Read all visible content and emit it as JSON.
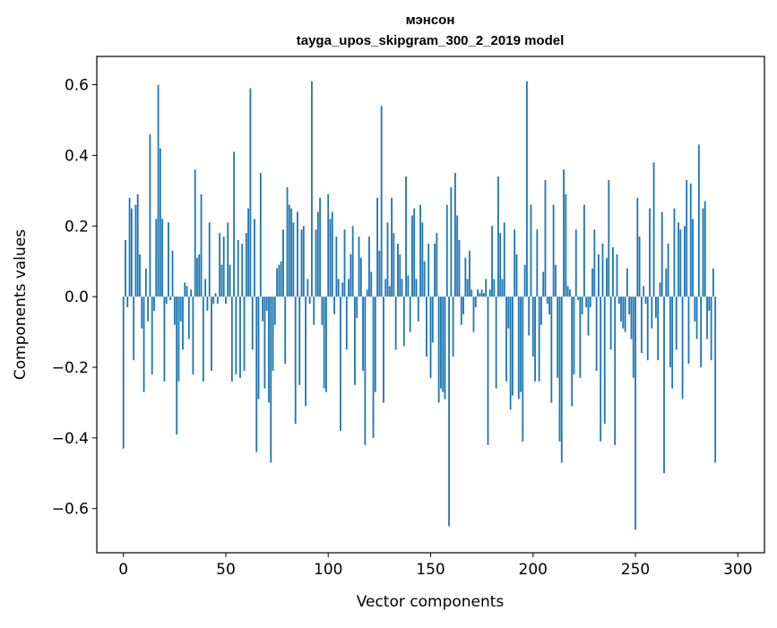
{
  "chart_data": {
    "type": "bar",
    "title": "мэнсон",
    "subtitle": "tayga_upos_skipgram_300_2_2019 model",
    "xlabel": "Vector components",
    "ylabel": "Components values",
    "xlim": [
      -13,
      313
    ],
    "ylim": [
      -0.725,
      0.68
    ],
    "xticks": [
      0,
      50,
      100,
      150,
      200,
      250,
      300
    ],
    "yticks": [
      -0.6,
      -0.4,
      -0.2,
      0.0,
      0.2,
      0.4,
      0.6
    ],
    "xtick_labels": [
      "0",
      "50",
      "100",
      "150",
      "200",
      "250",
      "300"
    ],
    "ytick_labels": [
      "−0.6",
      "−0.4",
      "−0.2",
      "0.0",
      "0.2",
      "0.4",
      "0.6"
    ],
    "bar_color": "#1f77b4",
    "values": [
      -0.43,
      0.16,
      -0.03,
      0.28,
      0.25,
      -0.18,
      0.26,
      0.29,
      0.12,
      -0.09,
      -0.27,
      0.08,
      -0.07,
      0.46,
      -0.22,
      -0.04,
      0.22,
      0.6,
      0.42,
      0.22,
      -0.24,
      -0.02,
      0.21,
      -0.01,
      0.13,
      -0.08,
      -0.39,
      -0.24,
      -0.07,
      -0.15,
      0.04,
      0.03,
      -0.12,
      0.02,
      -0.22,
      0.36,
      0.11,
      0.12,
      0.29,
      -0.24,
      0.05,
      -0.04,
      0.21,
      -0.21,
      -0.02,
      0.01,
      -0.02,
      0.18,
      0.09,
      0.17,
      -0.02,
      0.21,
      0.09,
      -0.24,
      0.41,
      -0.22,
      0.16,
      -0.23,
      0.15,
      -0.21,
      0.18,
      0.25,
      0.59,
      -0.15,
      0.22,
      -0.44,
      -0.29,
      0.35,
      -0.07,
      -0.26,
      -0.04,
      -0.3,
      -0.47,
      -0.21,
      -0.08,
      0.08,
      0.09,
      0.1,
      0.19,
      -0.19,
      0.31,
      0.26,
      0.25,
      0.21,
      -0.36,
      0.24,
      -0.25,
      0.19,
      0.2,
      -0.31,
      0.05,
      -0.02,
      0.61,
      -0.08,
      0.19,
      0.24,
      0.28,
      -0.08,
      -0.26,
      -0.27,
      0.29,
      0.22,
      0.24,
      -0.05,
      0.17,
      0.05,
      -0.38,
      0.04,
      0.19,
      -0.15,
      0.05,
      0.12,
      0.2,
      -0.25,
      -0.06,
      0.17,
      0.11,
      -0.21,
      -0.42,
      0.02,
      0.17,
      0.07,
      -0.4,
      -0.27,
      0.28,
      0.13,
      0.54,
      -0.3,
      0.05,
      0.21,
      0.03,
      0.28,
      0.18,
      -0.15,
      0.15,
      0.12,
      0.05,
      -0.14,
      0.34,
      0.06,
      -0.1,
      0.23,
      0.25,
      0.05,
      -0.07,
      0.26,
      0.21,
      0.1,
      -0.17,
      0.15,
      -0.23,
      -0.13,
      0.15,
      0.18,
      -0.3,
      -0.26,
      -0.27,
      -0.29,
      0.26,
      -0.65,
      0.31,
      -0.17,
      0.35,
      0.23,
      0.16,
      -0.08,
      -0.05,
      0.11,
      0.05,
      0.13,
      0.02,
      -0.1,
      -0.03,
      0.02,
      0.01,
      0.02,
      0.01,
      0.05,
      -0.42,
      0.02,
      0.2,
      0.05,
      -0.26,
      0.34,
      0.18,
      0.05,
      0.21,
      -0.24,
      -0.09,
      -0.32,
      -0.28,
      0.19,
      0.12,
      -0.29,
      -0.27,
      -0.41,
      0.09,
      0.61,
      -0.11,
      0.26,
      -0.17,
      -0.24,
      0.19,
      -0.24,
      -0.08,
      0.07,
      0.33,
      -0.02,
      -0.05,
      -0.3,
      0.26,
      0.09,
      -0.23,
      -0.41,
      -0.47,
      0.36,
      0.29,
      0.03,
      0.02,
      -0.31,
      -0.22,
      0.19,
      -0.01,
      -0.23,
      -0.05,
      0.26,
      -0.03,
      -0.11,
      -0.03,
      0.08,
      0.19,
      -0.21,
      0.12,
      -0.41,
      0.15,
      -0.36,
      0.11,
      0.33,
      -0.15,
      0.14,
      -0.42,
      0.12,
      -0.02,
      -0.07,
      -0.09,
      -0.1,
      0.08,
      -0.05,
      -0.12,
      -0.23,
      -0.66,
      0.28,
      0.17,
      -0.16,
      0.03,
      -0.02,
      -0.18,
      0.25,
      -0.09,
      0.38,
      -0.06,
      -0.18,
      0.04,
      0.24,
      -0.5,
      0.08,
      0.15,
      -0.2,
      -0.26,
      0.25,
      -0.15,
      0.21,
      0.19,
      -0.29,
      0.2,
      0.33,
      -0.19,
      0.32,
      0.22,
      -0.07,
      -0.12,
      0.43,
      -0.2,
      0.25,
      0.27,
      -0.12,
      -0.04,
      -0.18,
      0.08,
      -0.47
    ]
  }
}
